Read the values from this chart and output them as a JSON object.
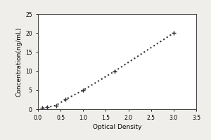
{
  "x_data": [
    0.1,
    0.2,
    0.4,
    0.6,
    1.0,
    1.7,
    3.0
  ],
  "y_data": [
    0.3,
    0.5,
    1.0,
    2.5,
    5.0,
    10.0,
    20.0
  ],
  "xlabel": "Optical Density",
  "ylabel": "Concentration(ng/mL)",
  "xlim": [
    0,
    3.5
  ],
  "ylim": [
    0,
    25
  ],
  "xticks": [
    0,
    0.5,
    1.0,
    1.5,
    2.0,
    2.5,
    3.0,
    3.5
  ],
  "yticks": [
    0,
    5,
    10,
    15,
    20,
    25
  ],
  "line_color": "#333333",
  "marker_color": "#333333",
  "bg_color": "#f0eeea",
  "plot_bg_color": "#ffffff",
  "line_style": "dotted",
  "line_width": 1.5,
  "marker": "+",
  "marker_size": 5,
  "marker_edge_width": 1.0,
  "font_size_label": 6.5,
  "font_size_tick": 5.5,
  "border_color": "#aaaaaa",
  "outer_border_color": "#cccccc"
}
